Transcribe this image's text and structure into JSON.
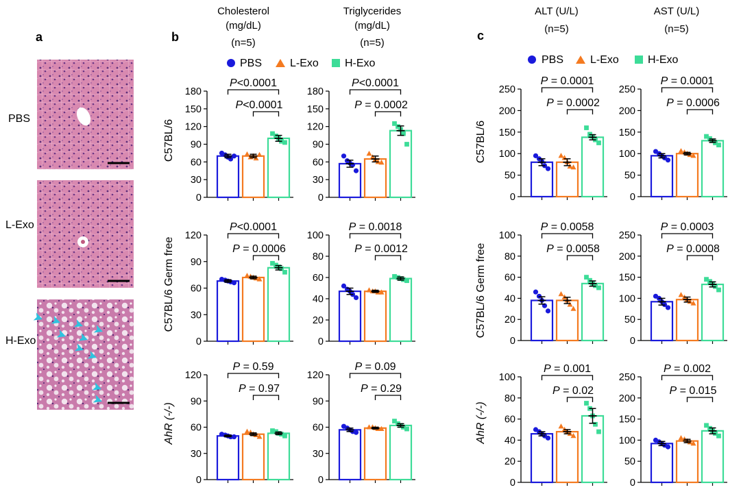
{
  "panel_labels": {
    "a": "a",
    "b": "b",
    "c": "c"
  },
  "histology": {
    "rows": [
      "PBS",
      "L-Exo",
      "H-Exo"
    ]
  },
  "headers": {
    "chol": [
      "Cholesterol",
      "(mg/dL)",
      "(n=5)"
    ],
    "tg": [
      "Triglycerides",
      "(mg/dL)",
      "(n=5)"
    ],
    "alt": [
      "ALT (U/L)",
      "(n=5)"
    ],
    "ast": [
      "AST (U/L)",
      "(n=5)"
    ]
  },
  "legend": [
    "PBS",
    "L-Exo",
    "H-Exo"
  ],
  "row_labels": {
    "b": [
      "C57BL/6",
      "C57BL/6 Germ free",
      "AhR (-/-)"
    ],
    "c": [
      "C57BL/6",
      "C57BL/6 Germ free",
      "AhR (-/-)"
    ]
  },
  "colors": {
    "PBS": "#1a1adc",
    "L-Exo": "#f47a20",
    "H-Exo": "#3ddc98"
  },
  "chart_data": [
    {
      "id": "chol-c57",
      "panel": "b",
      "type": "bar",
      "row": "C57BL/6",
      "measure": "Cholesterol (mg/dL)",
      "categories": [
        "PBS",
        "L-Exo",
        "H-Exo"
      ],
      "values": [
        70,
        70,
        100
      ],
      "sem": [
        3,
        3,
        5
      ],
      "points": [
        [
          75,
          72,
          68,
          65,
          70
        ],
        [
          73,
          68,
          70,
          66,
          72
        ],
        [
          108,
          104,
          100,
          95,
          93
        ]
      ],
      "ylim": [
        0,
        180
      ],
      "yticks": [
        "0",
        "30",
        "60",
        "90",
        "120",
        "150",
        "180"
      ],
      "annotations": [
        {
          "text": "P<0.0001",
          "from": 0,
          "to": 2
        },
        {
          "text": "P<0.0001",
          "from": 1,
          "to": 2
        }
      ]
    },
    {
      "id": "tg-c57",
      "panel": "b",
      "type": "bar",
      "row": "C57BL/6",
      "measure": "Triglycerides (mg/dL)",
      "categories": [
        "PBS",
        "L-Exo",
        "H-Exo"
      ],
      "values": [
        57,
        65,
        113
      ],
      "sem": [
        6,
        5,
        8
      ],
      "points": [
        [
          70,
          62,
          58,
          55,
          45
        ],
        [
          74,
          68,
          64,
          60,
          59
        ],
        [
          125,
          120,
          115,
          108,
          90
        ]
      ],
      "ylim": [
        0,
        180
      ],
      "yticks": [
        "0",
        "30",
        "60",
        "90",
        "120",
        "150",
        "180"
      ],
      "annotations": [
        {
          "text": "P<0.0001",
          "from": 0,
          "to": 2
        },
        {
          "text": "P = 0.0002",
          "from": 1,
          "to": 2
        }
      ]
    },
    {
      "id": "chol-gf",
      "panel": "b",
      "type": "bar",
      "row": "C57BL/6 Germ free",
      "measure": "Cholesterol (mg/dL)",
      "categories": [
        "PBS",
        "L-Exo",
        "H-Exo"
      ],
      "values": [
        68,
        72,
        83
      ],
      "sem": [
        1.5,
        1.5,
        2.5
      ],
      "points": [
        [
          70,
          69,
          68,
          67,
          66
        ],
        [
          74,
          73,
          72,
          71,
          70
        ],
        [
          88,
          86,
          84,
          82,
          78
        ]
      ],
      "ylim": [
        0,
        120
      ],
      "yticks": [
        "0",
        "30",
        "60",
        "90",
        "120"
      ],
      "annotations": [
        {
          "text": "P<0.0001",
          "from": 0,
          "to": 2
        },
        {
          "text": "P = 0.0006",
          "from": 1,
          "to": 2
        }
      ]
    },
    {
      "id": "tg-gf",
      "panel": "b",
      "type": "bar",
      "row": "C57BL/6 Germ free",
      "measure": "Triglycerides (mg/dL)",
      "categories": [
        "PBS",
        "L-Exo",
        "H-Exo"
      ],
      "values": [
        47,
        47,
        59
      ],
      "sem": [
        3,
        1,
        1.5
      ],
      "points": [
        [
          52,
          49,
          47,
          44,
          41
        ],
        [
          48,
          47,
          47,
          46,
          46
        ],
        [
          61,
          60,
          59,
          58,
          57
        ]
      ],
      "ylim": [
        0,
        100
      ],
      "yticks": [
        "0",
        "20",
        "40",
        "60",
        "80",
        "100"
      ],
      "annotations": [
        {
          "text": "P = 0.0018",
          "from": 0,
          "to": 2
        },
        {
          "text": "P = 0.0012",
          "from": 1,
          "to": 2
        }
      ]
    },
    {
      "id": "chol-ahr",
      "panel": "b",
      "type": "bar",
      "row": "AhR (-/-)",
      "measure": "Cholesterol (mg/dL)",
      "categories": [
        "PBS",
        "L-Exo",
        "H-Exo"
      ],
      "values": [
        50,
        52,
        53
      ],
      "sem": [
        1,
        1.5,
        1.5
      ],
      "points": [
        [
          52,
          51,
          50,
          49,
          49
        ],
        [
          55,
          54,
          52,
          51,
          49
        ],
        [
          56,
          55,
          53,
          52,
          50
        ]
      ],
      "ylim": [
        0,
        120
      ],
      "yticks": [
        "0",
        "30",
        "60",
        "90",
        "120"
      ],
      "annotations": [
        {
          "text": "P = 0.59",
          "from": 0,
          "to": 2
        },
        {
          "text": "P = 0.97",
          "from": 1,
          "to": 2
        }
      ]
    },
    {
      "id": "tg-ahr",
      "panel": "b",
      "type": "bar",
      "row": "AhR (-/-)",
      "measure": "Triglycerides (mg/dL)",
      "categories": [
        "PBS",
        "L-Exo",
        "H-Exo"
      ],
      "values": [
        57,
        59,
        62
      ],
      "sem": [
        2,
        1,
        2
      ],
      "points": [
        [
          61,
          59,
          57,
          55,
          54
        ],
        [
          60,
          60,
          59,
          58,
          58
        ],
        [
          67,
          64,
          62,
          60,
          58
        ]
      ],
      "ylim": [
        0,
        120
      ],
      "yticks": [
        "0",
        "30",
        "60",
        "90",
        "120"
      ],
      "annotations": [
        {
          "text": "P = 0.09",
          "from": 0,
          "to": 2
        },
        {
          "text": "P = 0.29",
          "from": 1,
          "to": 2
        }
      ]
    },
    {
      "id": "alt-c57",
      "panel": "c",
      "type": "bar",
      "row": "C57BL/6",
      "measure": "ALT (U/L)",
      "categories": [
        "PBS",
        "L-Exo",
        "H-Exo"
      ],
      "values": [
        80,
        80,
        138
      ],
      "sem": [
        8,
        8,
        6
      ],
      "points": [
        [
          95,
          88,
          82,
          72,
          65
        ],
        [
          95,
          90,
          80,
          70,
          68
        ],
        [
          160,
          145,
          140,
          132,
          125
        ]
      ],
      "ylim": [
        0,
        250
      ],
      "yticks": [
        "0",
        "50",
        "100",
        "150",
        "200",
        "250"
      ],
      "annotations": [
        {
          "text": "P = 0.0001",
          "from": 0,
          "to": 2
        },
        {
          "text": "P = 0.0002",
          "from": 1,
          "to": 2
        }
      ]
    },
    {
      "id": "ast-c57",
      "panel": "c",
      "type": "bar",
      "row": "C57BL/6",
      "measure": "AST (U/L)",
      "categories": [
        "PBS",
        "L-Exo",
        "H-Exo"
      ],
      "values": [
        95,
        100,
        130
      ],
      "sem": [
        5,
        3,
        4
      ],
      "points": [
        [
          105,
          100,
          95,
          90,
          85
        ],
        [
          106,
          103,
          100,
          97,
          95
        ],
        [
          140,
          135,
          130,
          125,
          120
        ]
      ],
      "ylim": [
        0,
        250
      ],
      "yticks": [
        "0",
        "50",
        "100",
        "150",
        "200",
        "250"
      ],
      "annotations": [
        {
          "text": "P = 0.0001",
          "from": 0,
          "to": 2
        },
        {
          "text": "P = 0.0006",
          "from": 1,
          "to": 2
        }
      ]
    },
    {
      "id": "alt-gf",
      "panel": "c",
      "type": "bar",
      "row": "C57BL/6 Germ free",
      "measure": "ALT (U/L)",
      "categories": [
        "PBS",
        "L-Exo",
        "H-Exo"
      ],
      "values": [
        38,
        38,
        54
      ],
      "sem": [
        3.5,
        3,
        2.5
      ],
      "points": [
        [
          46,
          42,
          38,
          33,
          28
        ],
        [
          44,
          41,
          38,
          34,
          30
        ],
        [
          60,
          57,
          54,
          52,
          50
        ]
      ],
      "ylim": [
        0,
        100
      ],
      "yticks": [
        "0",
        "20",
        "40",
        "60",
        "80",
        "100"
      ],
      "annotations": [
        {
          "text": "P = 0.0058",
          "from": 0,
          "to": 2
        },
        {
          "text": "P = 0.0058",
          "from": 1,
          "to": 2
        }
      ]
    },
    {
      "id": "ast-gf",
      "panel": "c",
      "type": "bar",
      "row": "C57BL/6 Germ free",
      "measure": "AST (U/L)",
      "categories": [
        "PBS",
        "L-Exo",
        "H-Exo"
      ],
      "values": [
        92,
        97,
        133
      ],
      "sem": [
        8,
        6,
        6
      ],
      "points": [
        [
          105,
          100,
          92,
          85,
          78
        ],
        [
          108,
          102,
          97,
          92,
          88
        ],
        [
          145,
          140,
          135,
          128,
          120
        ]
      ],
      "ylim": [
        0,
        250
      ],
      "yticks": [
        "0",
        "50",
        "100",
        "150",
        "200",
        "250"
      ],
      "annotations": [
        {
          "text": "P = 0.0003",
          "from": 0,
          "to": 2
        },
        {
          "text": "P = 0.0008",
          "from": 1,
          "to": 2
        }
      ]
    },
    {
      "id": "alt-ahr",
      "panel": "c",
      "type": "bar",
      "row": "AhR (-/-)",
      "measure": "ALT (U/L)",
      "categories": [
        "PBS",
        "L-Exo",
        "H-Exo"
      ],
      "values": [
        46,
        48,
        63
      ],
      "sem": [
        2,
        2,
        7
      ],
      "points": [
        [
          50,
          48,
          46,
          44,
          42
        ],
        [
          53,
          50,
          48,
          46,
          44
        ],
        [
          75,
          70,
          63,
          55,
          48
        ]
      ],
      "ylim": [
        0,
        100
      ],
      "yticks": [
        "0",
        "20",
        "40",
        "60",
        "80",
        "100"
      ],
      "annotations": [
        {
          "text": "P = 0.001",
          "from": 0,
          "to": 2
        },
        {
          "text": "P = 0.02",
          "from": 1,
          "to": 2
        }
      ]
    },
    {
      "id": "ast-ahr",
      "panel": "c",
      "type": "bar",
      "row": "AhR (-/-)",
      "measure": "AST (U/L)",
      "categories": [
        "PBS",
        "L-Exo",
        "H-Exo"
      ],
      "values": [
        92,
        98,
        122
      ],
      "sem": [
        5,
        4,
        7
      ],
      "points": [
        [
          100,
          96,
          92,
          88,
          84
        ],
        [
          105,
          102,
          98,
          95,
          92
        ],
        [
          135,
          128,
          122,
          116,
          110
        ]
      ],
      "ylim": [
        0,
        250
      ],
      "yticks": [
        "0",
        "50",
        "100",
        "150",
        "200",
        "250"
      ],
      "annotations": [
        {
          "text": "P = 0.002",
          "from": 0,
          "to": 2
        },
        {
          "text": "P = 0.015",
          "from": 1,
          "to": 2
        }
      ]
    }
  ]
}
